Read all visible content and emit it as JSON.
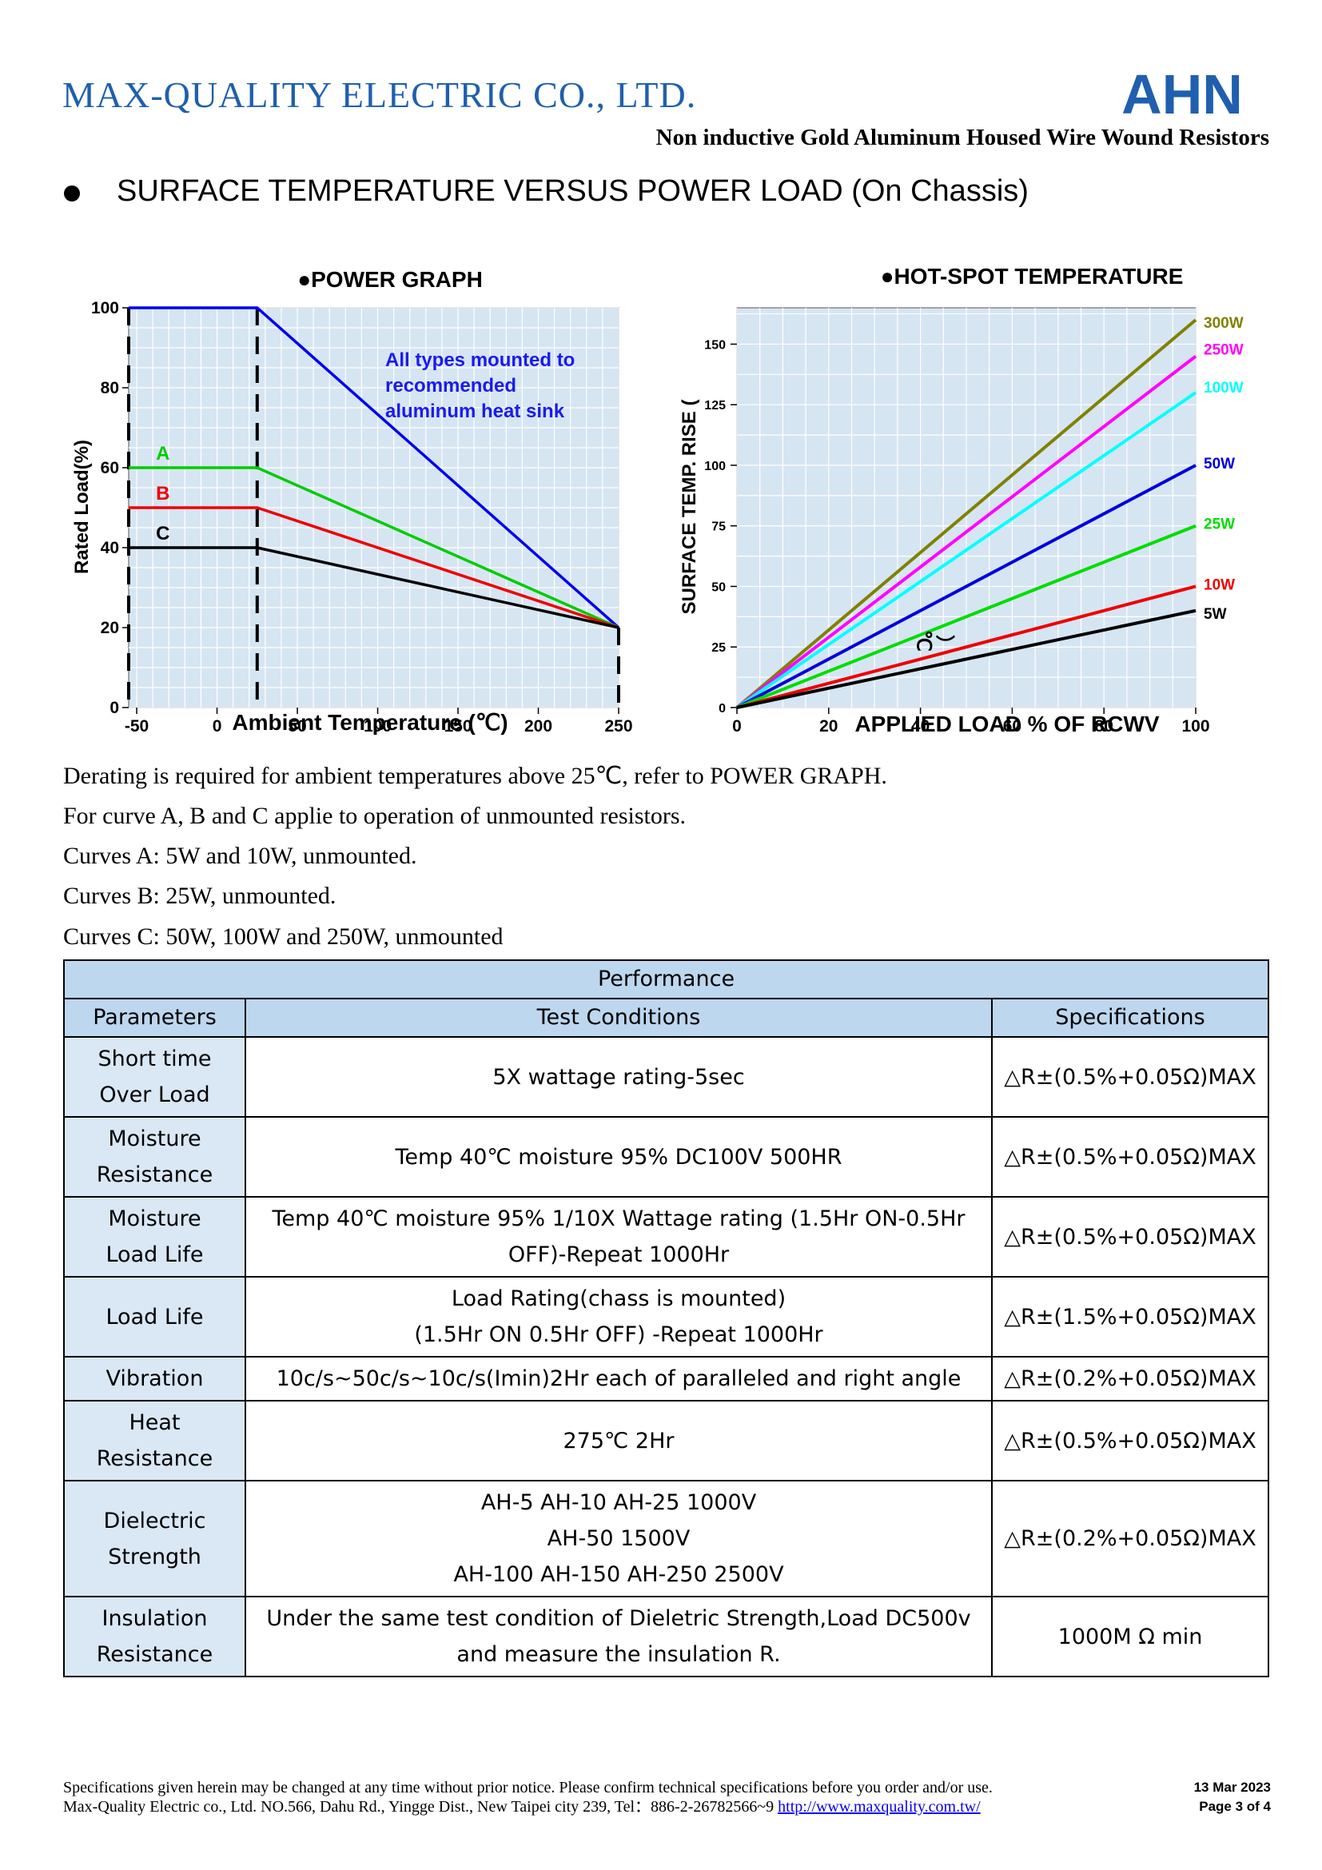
{
  "header": {
    "company": "MAX-QUALITY  ELECTRIC  CO.,  LTD.",
    "logo_text": "AHN",
    "subtitle": "Non inductive Gold Aluminum Housed Wire Wound Resistors"
  },
  "section_heading": "SURFACE TEMPERATURE VERSUS POWER LOAD (On Chassis)",
  "colors": {
    "brand": "#1f5fae",
    "plot_bg": "#d6e5f2",
    "table_header": "#bdd7ee",
    "table_param": "#dae7f5"
  },
  "chart_data": [
    {
      "type": "line",
      "title": "●POWER GRAPH",
      "xlabel": "Ambient Temperature (℃)",
      "ylabel": "Rated Load(%)",
      "xlim": [
        -55,
        250
      ],
      "ylim": [
        0,
        100
      ],
      "x_ticks": [
        "-50",
        "0",
        "50",
        "100",
        "150",
        "200",
        "250"
      ],
      "y_ticks": [
        "0",
        "20",
        "40",
        "60",
        "80",
        "100"
      ],
      "grid": true,
      "annotation": "All types mounted to recommended aluminum heat sink",
      "series": [
        {
          "name": "",
          "color": "#0000ee",
          "x": [
            -55,
            25,
            250
          ],
          "y": [
            100,
            100,
            20
          ]
        },
        {
          "name": "A",
          "color": "#00cc00",
          "x": [
            -55,
            25,
            250
          ],
          "y": [
            60,
            60,
            20
          ]
        },
        {
          "name": "B",
          "color": "#ee0000",
          "x": [
            -55,
            25,
            250
          ],
          "y": [
            50,
            50,
            20
          ]
        },
        {
          "name": "C",
          "color": "#000000",
          "x": [
            -55,
            25,
            250
          ],
          "y": [
            40,
            40,
            20
          ]
        }
      ],
      "dashed_verticals": [
        -55,
        25,
        250
      ]
    },
    {
      "type": "line",
      "title": "●HOT-SPOT TEMPERATURE",
      "xlabel": "APPLIED LOAD % OF RCWV",
      "ylabel": "SURFACE TEMP. RISE (",
      "xlim": [
        0,
        100
      ],
      "ylim": [
        0,
        165
      ],
      "x_ticks": [
        "0",
        "20",
        "40",
        "60",
        "80",
        "100"
      ],
      "y_ticks": [
        "0",
        "25",
        "50",
        "75",
        "100",
        "125",
        "150"
      ],
      "grid": true,
      "stray_labels": [
        "℃",
        "）"
      ],
      "series": [
        {
          "name": "300W",
          "color": "#808000",
          "x": [
            0,
            100
          ],
          "y": [
            0,
            160
          ]
        },
        {
          "name": "250W",
          "color": "#ff00ff",
          "x": [
            0,
            100
          ],
          "y": [
            0,
            145
          ]
        },
        {
          "name": "100W",
          "color": "#00ffff",
          "x": [
            0,
            100
          ],
          "y": [
            0,
            130
          ]
        },
        {
          "name": "50W",
          "color": "#0000dd",
          "x": [
            0,
            100
          ],
          "y": [
            0,
            100
          ]
        },
        {
          "name": "25W",
          "color": "#00dd00",
          "x": [
            0,
            100
          ],
          "y": [
            0,
            75
          ]
        },
        {
          "name": "10W",
          "color": "#ee0000",
          "x": [
            0,
            100
          ],
          "y": [
            0,
            50
          ]
        },
        {
          "name": "5W",
          "color": "#000000",
          "x": [
            0,
            100
          ],
          "y": [
            0,
            40
          ]
        }
      ]
    }
  ],
  "notes": [
    "Derating is required for ambient temperatures above 25℃, refer to POWER GRAPH.",
    "For curve A, B and C applie to operation of unmounted resistors.",
    "Curves A: 5W and 10W, unmounted.",
    "Curves B: 25W, unmounted.",
    "Curves C: 50W, 100W and 250W, unmounted"
  ],
  "table": {
    "title": "Performance",
    "headers": [
      "Parameters",
      "Test Conditions",
      "Specifications"
    ],
    "rows": [
      {
        "param": [
          "Short time",
          "Over Load"
        ],
        "cond": [
          "5X wattage rating-5sec"
        ],
        "spec": "△R±(0.5%+0.05Ω)MAX"
      },
      {
        "param": [
          "Moisture",
          "Resistance"
        ],
        "cond": [
          "Temp 40℃  moisture 95% DC100V 500HR"
        ],
        "spec": "△R±(0.5%+0.05Ω)MAX"
      },
      {
        "param": [
          "Moisture",
          "Load Life"
        ],
        "cond": [
          "Temp 40℃  moisture 95% 1/10X Wattage rating (1.5Hr ON-0.5Hr",
          "OFF)-Repeat 1000Hr"
        ],
        "spec": "△R±(0.5%+0.05Ω)MAX"
      },
      {
        "param": [
          "Load Life"
        ],
        "cond": [
          "Load Rating(chass is mounted)",
          "(1.5Hr ON 0.5Hr OFF) -Repeat 1000Hr"
        ],
        "spec": "△R±(1.5%+0.05Ω)MAX"
      },
      {
        "param": [
          "Vibration"
        ],
        "cond": [
          "10c/s~50c/s~10c/s(Imin)2Hr each of paralleled and right angle"
        ],
        "spec": "△R±(0.2%+0.05Ω)MAX"
      },
      {
        "param": [
          "Heat",
          "Resistance"
        ],
        "cond": [
          "275℃  2Hr"
        ],
        "spec": "△R±(0.5%+0.05Ω)MAX"
      },
      {
        "param": [
          "Dielectric",
          "Strength"
        ],
        "cond": [
          "AH-5 AH-10 AH-25 1000V",
          "AH-50 1500V",
          "AH-100 AH-150 AH-250 2500V"
        ],
        "spec": "△R±(0.2%+0.05Ω)MAX"
      },
      {
        "param": [
          "Insulation",
          "Resistance"
        ],
        "cond": [
          "Under the same test condition of Dieletric Strength,Load DC500v",
          "and measure the insulation R."
        ],
        "spec": "1000M Ω min"
      }
    ]
  },
  "footer": {
    "line1": "Specifications given herein may be changed at any time without prior notice. Please confirm technical specifications before you order and/or use.",
    "line2": "Max-Quality Electric co., Ltd. NO.566, Dahu Rd., Yingge Dist., New Taipei city 239, Tel：886-2-26782566~9 ",
    "link": "http://www.maxquality.com.tw/",
    "date": "13 Mar 2023",
    "page": "Page   3  of   4"
  }
}
